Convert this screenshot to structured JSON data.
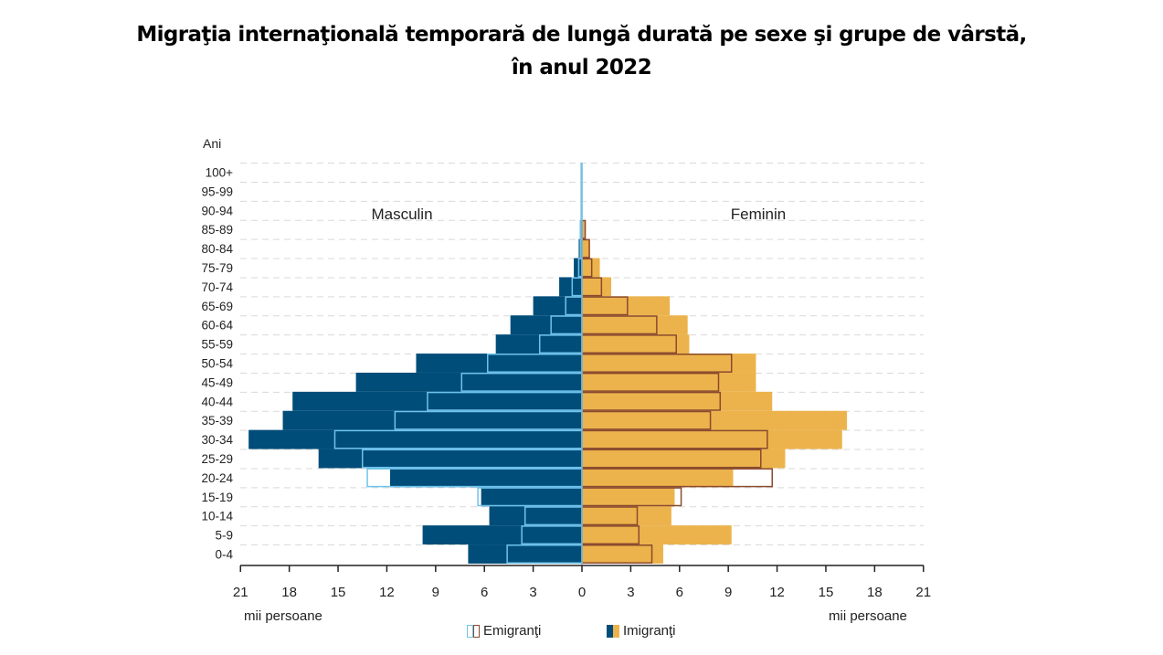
{
  "chart_data": {
    "type": "bar",
    "subtype": "population-pyramid",
    "title": [
      "Migraţia internaţională temporară de lungă durată pe sexe şi grupe de vârstă,",
      "în anul 2022"
    ],
    "ylabel": "Ani",
    "xlabel_left": "mii persoane",
    "xlabel_right": "mii persoane",
    "side_labels": {
      "left": "Masculin",
      "right": "Feminin"
    },
    "xlim": [
      0,
      21
    ],
    "xticks": [
      21,
      18,
      15,
      12,
      9,
      6,
      3,
      0,
      3,
      6,
      9,
      12,
      15,
      18,
      21
    ],
    "categories": [
      "100+",
      "95-99",
      "90-94",
      "85-89",
      "80-84",
      "75-79",
      "70-74",
      "65-69",
      "60-64",
      "55-59",
      "50-54",
      "45-49",
      "40-44",
      "35-39",
      "30-34",
      "25-29",
      "20-24",
      "15-19",
      "10-14",
      "5-9",
      "0-4"
    ],
    "series": [
      {
        "name": "Imigranţi",
        "sex": "Masculin",
        "values": [
          0.0,
          0.0,
          0.0,
          0.1,
          0.2,
          0.5,
          1.4,
          3.0,
          4.4,
          5.3,
          10.2,
          13.9,
          17.8,
          18.4,
          20.5,
          16.2,
          11.8,
          6.2,
          5.7,
          9.8,
          7.0
        ]
      },
      {
        "name": "Emigranţi",
        "sex": "Masculin",
        "values": [
          0.05,
          0.05,
          0.05,
          0.1,
          0.1,
          0.2,
          0.6,
          1.0,
          1.9,
          2.6,
          5.8,
          7.4,
          9.5,
          11.5,
          15.2,
          13.5,
          13.2,
          6.4,
          3.5,
          3.7,
          4.6
        ]
      },
      {
        "name": "Imigranţi",
        "sex": "Feminin",
        "values": [
          0.0,
          0.0,
          0.0,
          0.2,
          0.5,
          1.1,
          1.8,
          5.4,
          6.5,
          6.6,
          10.7,
          10.7,
          11.7,
          16.3,
          16.0,
          12.5,
          9.3,
          5.7,
          5.5,
          9.2,
          5.0
        ]
      },
      {
        "name": "Emigranţi",
        "sex": "Feminin",
        "values": [
          0.0,
          0.0,
          0.0,
          0.2,
          0.45,
          0.6,
          1.2,
          2.8,
          4.6,
          5.8,
          9.2,
          8.4,
          8.5,
          7.9,
          11.4,
          11.0,
          11.7,
          6.1,
          3.4,
          3.5,
          4.3
        ]
      }
    ],
    "legend": [
      {
        "label": "Emigranţi",
        "type": "outline"
      },
      {
        "label": "Imigranţi",
        "type": "filled"
      }
    ],
    "legend_position": "bottom",
    "grid": "horizontal-dashed",
    "colors": {
      "male_immigrant": "#004d7a",
      "female_immigrant": "#ecb34c",
      "male_emigrant_outline": "#6ec3ec",
      "female_emigrant_outline": "#8a4a2e",
      "grid": "#d9d9d9",
      "axis": "#222222"
    }
  }
}
